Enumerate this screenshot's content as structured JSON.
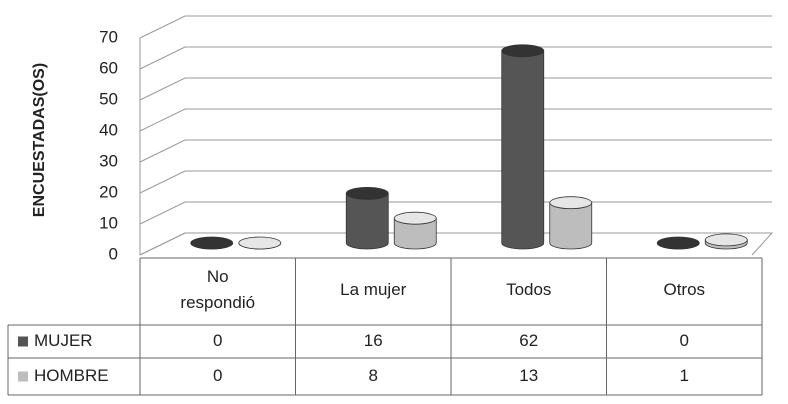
{
  "chart_data": {
    "type": "bar",
    "y_label": "ENCUESTADAS(OS)",
    "categories": [
      "No\nrespondió",
      "La mujer",
      "Todos",
      "Otros"
    ],
    "series": [
      {
        "name": "MUJER",
        "color": "#555555",
        "values": [
          0,
          16,
          62,
          0
        ]
      },
      {
        "name": "HOMBRE",
        "color": "#bdbdbd",
        "values": [
          0,
          8,
          13,
          1
        ]
      }
    ],
    "ylim": [
      0,
      70
    ],
    "yticks": [
      0,
      10,
      20,
      30,
      40,
      50,
      60,
      70
    ],
    "grid": true
  }
}
